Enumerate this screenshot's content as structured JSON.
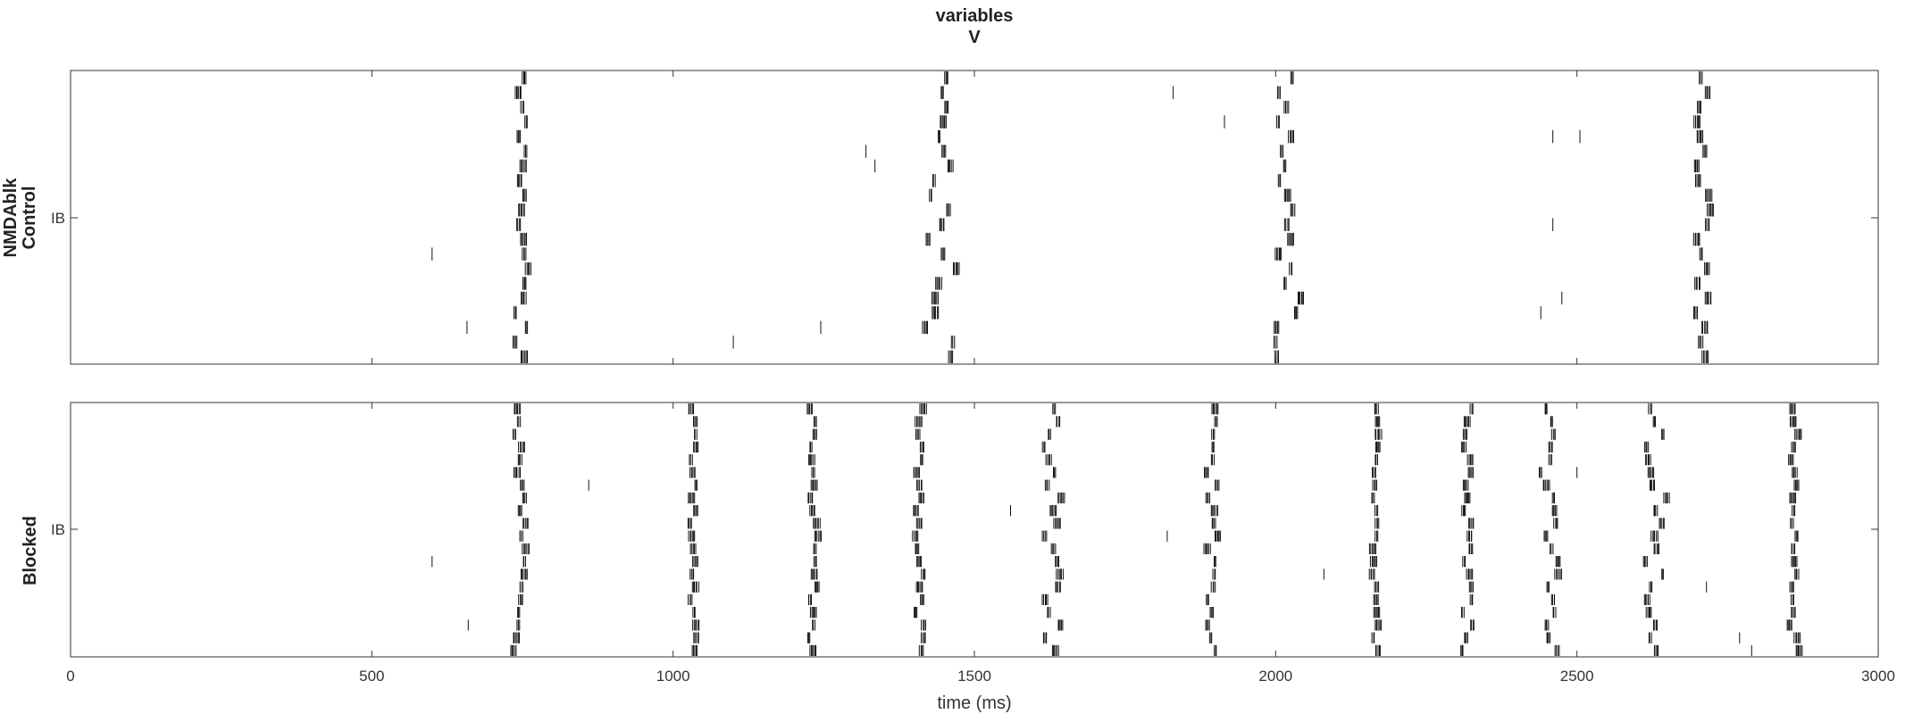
{
  "figure": {
    "title_line1": "variables",
    "title_line2": "V"
  },
  "chart_data": [
    {
      "type": "scatter",
      "subtype": "raster",
      "ylabel_line1": "NMDAblk",
      "ylabel_line2": "Control",
      "ytick_label": "IB",
      "xlim": [
        0,
        3000
      ],
      "xticks": [
        500,
        1000,
        1500,
        2000,
        2500
      ],
      "xtick_labels": [
        "",
        "",
        "",
        "",
        ""
      ],
      "n_cells": 20,
      "bursts": [
        {
          "center": 745,
          "spread": 12
        },
        {
          "center": 1440,
          "spread": 28
        },
        {
          "center": 2015,
          "spread": 22
        },
        {
          "center": 2705,
          "spread": 12
        }
      ],
      "stray_spikes": [
        {
          "cell": 12,
          "t": 600
        },
        {
          "cell": 17,
          "t": 658
        },
        {
          "cell": 18,
          "t": 1100
        },
        {
          "cell": 17,
          "t": 1245
        },
        {
          "cell": 5,
          "t": 1320
        },
        {
          "cell": 6,
          "t": 1335
        },
        {
          "cell": 1,
          "t": 1830
        },
        {
          "cell": 3,
          "t": 1915
        },
        {
          "cell": 4,
          "t": 2460
        },
        {
          "cell": 4,
          "t": 2505
        },
        {
          "cell": 10,
          "t": 2460
        },
        {
          "cell": 15,
          "t": 2475
        },
        {
          "cell": 16,
          "t": 2440
        }
      ]
    },
    {
      "type": "scatter",
      "subtype": "raster",
      "ylabel_line1": "Blocked",
      "ytick_label": "IB",
      "xlabel": "time (ms)",
      "xlim": [
        0,
        3000
      ],
      "xticks": [
        0,
        500,
        1000,
        1500,
        2000,
        2500,
        3000
      ],
      "xtick_labels": [
        "0",
        "500",
        "1000",
        "1500",
        "2000",
        "2500",
        "3000"
      ],
      "n_cells": 20,
      "bursts": [
        {
          "center": 740,
          "spread": 12
        },
        {
          "center": 1030,
          "spread": 6
        },
        {
          "center": 1230,
          "spread": 8
        },
        {
          "center": 1405,
          "spread": 8
        },
        {
          "center": 1625,
          "spread": 15
        },
        {
          "center": 1890,
          "spread": 10
        },
        {
          "center": 2160,
          "spread": 5
        },
        {
          "center": 2315,
          "spread": 10
        },
        {
          "center": 2450,
          "spread": 15
        },
        {
          "center": 2625,
          "spread": 20
        },
        {
          "center": 2855,
          "spread": 8
        }
      ],
      "stray_spikes": [
        {
          "cell": 6,
          "t": 860
        },
        {
          "cell": 12,
          "t": 600
        },
        {
          "cell": 17,
          "t": 660
        },
        {
          "cell": 8,
          "t": 1560
        },
        {
          "cell": 10,
          "t": 1820
        },
        {
          "cell": 13,
          "t": 2080
        },
        {
          "cell": 5,
          "t": 2500
        },
        {
          "cell": 14,
          "t": 2715
        },
        {
          "cell": 18,
          "t": 2770
        },
        {
          "cell": 19,
          "t": 2790
        }
      ]
    }
  ]
}
